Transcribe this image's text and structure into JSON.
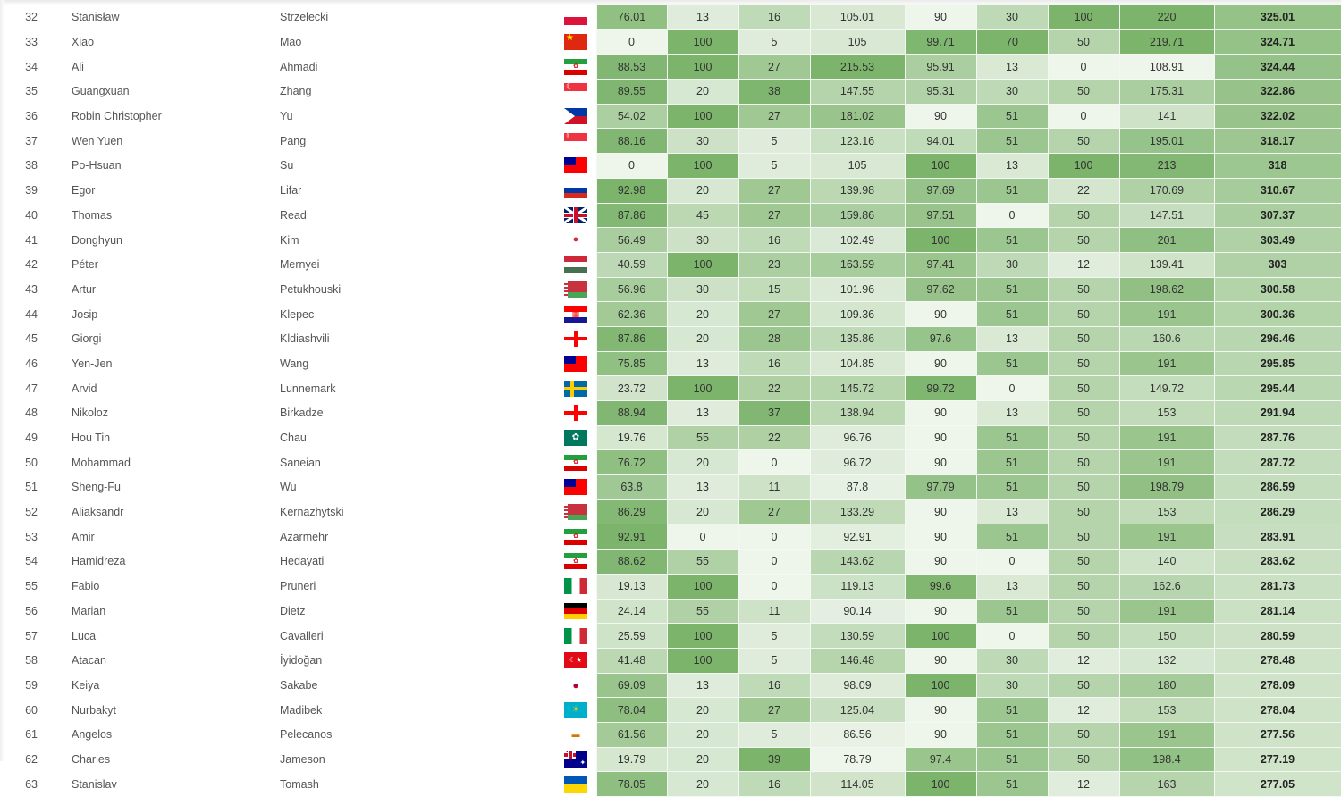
{
  "colors": {
    "heat_low": "#f4f8f2",
    "heat_high": "#7cb46c",
    "text": "#444444"
  },
  "rows": [
    {
      "rank": "32",
      "first": "Stanisław",
      "last": "Strzelecki",
      "flag": "flag-poland",
      "scores": [
        "76.01",
        "13",
        "16",
        "105.01",
        "90",
        "30",
        "100",
        "220"
      ],
      "total": "325.01"
    },
    {
      "rank": "33",
      "first": "Xiao",
      "last": "Mao",
      "flag": "flag-china",
      "scores": [
        "0",
        "100",
        "5",
        "105",
        "99.71",
        "70",
        "50",
        "219.71"
      ],
      "total": "324.71"
    },
    {
      "rank": "34",
      "first": "Ali",
      "last": "Ahmadi",
      "flag": "flag-iran",
      "scores": [
        "88.53",
        "100",
        "27",
        "215.53",
        "95.91",
        "13",
        "0",
        "108.91"
      ],
      "total": "324.44"
    },
    {
      "rank": "35",
      "first": "Guangxuan",
      "last": "Zhang",
      "flag": "flag-singapore",
      "scores": [
        "89.55",
        "20",
        "38",
        "147.55",
        "95.31",
        "30",
        "50",
        "175.31"
      ],
      "total": "322.86"
    },
    {
      "rank": "36",
      "first": "Robin Christopher",
      "last": "Yu",
      "flag": "flag-philippines",
      "scores": [
        "54.02",
        "100",
        "27",
        "181.02",
        "90",
        "51",
        "0",
        "141"
      ],
      "total": "322.02"
    },
    {
      "rank": "37",
      "first": "Wen Yuen",
      "last": "Pang",
      "flag": "flag-singapore",
      "scores": [
        "88.16",
        "30",
        "5",
        "123.16",
        "94.01",
        "51",
        "50",
        "195.01"
      ],
      "total": "318.17"
    },
    {
      "rank": "38",
      "first": "Po-Hsuan",
      "last": "Su",
      "flag": "flag-taiwan",
      "scores": [
        "0",
        "100",
        "5",
        "105",
        "100",
        "13",
        "100",
        "213"
      ],
      "total": "318"
    },
    {
      "rank": "39",
      "first": "Egor",
      "last": "Lifar",
      "flag": "flag-russia",
      "scores": [
        "92.98",
        "20",
        "27",
        "139.98",
        "97.69",
        "51",
        "22",
        "170.69"
      ],
      "total": "310.67"
    },
    {
      "rank": "40",
      "first": "Thomas",
      "last": "Read",
      "flag": "flag-united-kingdom",
      "scores": [
        "87.86",
        "45",
        "27",
        "159.86",
        "97.51",
        "0",
        "50",
        "147.51"
      ],
      "total": "307.37"
    },
    {
      "rank": "41",
      "first": "Donghyun",
      "last": "Kim",
      "flag": "flag-south-korea",
      "scores": [
        "56.49",
        "30",
        "16",
        "102.49",
        "100",
        "51",
        "50",
        "201"
      ],
      "total": "303.49"
    },
    {
      "rank": "42",
      "first": "Péter",
      "last": "Mernyei",
      "flag": "flag-hungary",
      "scores": [
        "40.59",
        "100",
        "23",
        "163.59",
        "97.41",
        "30",
        "12",
        "139.41"
      ],
      "total": "303"
    },
    {
      "rank": "43",
      "first": "Artur",
      "last": "Petukhouski",
      "flag": "flag-belarus",
      "scores": [
        "56.96",
        "30",
        "15",
        "101.96",
        "97.62",
        "51",
        "50",
        "198.62"
      ],
      "total": "300.58"
    },
    {
      "rank": "44",
      "first": "Josip",
      "last": "Klepec",
      "flag": "flag-croatia",
      "scores": [
        "62.36",
        "20",
        "27",
        "109.36",
        "90",
        "51",
        "50",
        "191"
      ],
      "total": "300.36"
    },
    {
      "rank": "45",
      "first": "Giorgi",
      "last": "Kldiashvili",
      "flag": "flag-georgia",
      "scores": [
        "87.86",
        "20",
        "28",
        "135.86",
        "97.6",
        "13",
        "50",
        "160.6"
      ],
      "total": "296.46"
    },
    {
      "rank": "46",
      "first": "Yen-Jen",
      "last": "Wang",
      "flag": "flag-taiwan",
      "scores": [
        "75.85",
        "13",
        "16",
        "104.85",
        "90",
        "51",
        "50",
        "191"
      ],
      "total": "295.85"
    },
    {
      "rank": "47",
      "first": "Arvid",
      "last": "Lunnemark",
      "flag": "flag-sweden",
      "scores": [
        "23.72",
        "100",
        "22",
        "145.72",
        "99.72",
        "0",
        "50",
        "149.72"
      ],
      "total": "295.44"
    },
    {
      "rank": "48",
      "first": "Nikoloz",
      "last": "Birkadze",
      "flag": "flag-georgia",
      "scores": [
        "88.94",
        "13",
        "37",
        "138.94",
        "90",
        "13",
        "50",
        "153"
      ],
      "total": "291.94"
    },
    {
      "rank": "49",
      "first": "Hou Tin",
      "last": "Chau",
      "flag": "flag-macau",
      "scores": [
        "19.76",
        "55",
        "22",
        "96.76",
        "90",
        "51",
        "50",
        "191"
      ],
      "total": "287.76"
    },
    {
      "rank": "50",
      "first": "Mohammad",
      "last": "Saneian",
      "flag": "flag-iran",
      "scores": [
        "76.72",
        "20",
        "0",
        "96.72",
        "90",
        "51",
        "50",
        "191"
      ],
      "total": "287.72"
    },
    {
      "rank": "51",
      "first": "Sheng-Fu",
      "last": "Wu",
      "flag": "flag-taiwan",
      "scores": [
        "63.8",
        "13",
        "11",
        "87.8",
        "97.79",
        "51",
        "50",
        "198.79"
      ],
      "total": "286.59"
    },
    {
      "rank": "52",
      "first": "Aliaksandr",
      "last": "Kernazhytski",
      "flag": "flag-belarus",
      "scores": [
        "86.29",
        "20",
        "27",
        "133.29",
        "90",
        "13",
        "50",
        "153"
      ],
      "total": "286.29"
    },
    {
      "rank": "53",
      "first": "Amir",
      "last": "Azarmehr",
      "flag": "flag-iran",
      "scores": [
        "92.91",
        "0",
        "0",
        "92.91",
        "90",
        "51",
        "50",
        "191"
      ],
      "total": "283.91"
    },
    {
      "rank": "54",
      "first": "Hamidreza",
      "last": "Hedayati",
      "flag": "flag-iran",
      "scores": [
        "88.62",
        "55",
        "0",
        "143.62",
        "90",
        "0",
        "50",
        "140"
      ],
      "total": "283.62"
    },
    {
      "rank": "55",
      "first": "Fabio",
      "last": "Pruneri",
      "flag": "flag-italy",
      "scores": [
        "19.13",
        "100",
        "0",
        "119.13",
        "99.6",
        "13",
        "50",
        "162.6"
      ],
      "total": "281.73"
    },
    {
      "rank": "56",
      "first": "Marian",
      "last": "Dietz",
      "flag": "flag-germany",
      "scores": [
        "24.14",
        "55",
        "11",
        "90.14",
        "90",
        "51",
        "50",
        "191"
      ],
      "total": "281.14"
    },
    {
      "rank": "57",
      "first": "Luca",
      "last": "Cavalleri",
      "flag": "flag-italy",
      "scores": [
        "25.59",
        "100",
        "5",
        "130.59",
        "100",
        "0",
        "50",
        "150"
      ],
      "total": "280.59"
    },
    {
      "rank": "58",
      "first": "Atacan",
      "last": "İyidoğan",
      "flag": "flag-turkey",
      "scores": [
        "41.48",
        "100",
        "5",
        "146.48",
        "90",
        "30",
        "12",
        "132"
      ],
      "total": "278.48"
    },
    {
      "rank": "59",
      "first": "Keiya",
      "last": "Sakabe",
      "flag": "flag-japan",
      "scores": [
        "69.09",
        "13",
        "16",
        "98.09",
        "100",
        "30",
        "50",
        "180"
      ],
      "total": "278.09"
    },
    {
      "rank": "60",
      "first": "Nurbakyt",
      "last": "Madibek",
      "flag": "flag-kazakhstan",
      "scores": [
        "78.04",
        "20",
        "27",
        "125.04",
        "90",
        "51",
        "12",
        "153"
      ],
      "total": "278.04"
    },
    {
      "rank": "61",
      "first": "Angelos",
      "last": "Pelecanos",
      "flag": "flag-cyprus",
      "scores": [
        "61.56",
        "20",
        "5",
        "86.56",
        "90",
        "51",
        "50",
        "191"
      ],
      "total": "277.56"
    },
    {
      "rank": "62",
      "first": "Charles",
      "last": "Jameson",
      "flag": "flag-australia",
      "scores": [
        "19.79",
        "20",
        "39",
        "78.79",
        "97.4",
        "51",
        "50",
        "198.4"
      ],
      "total": "277.19"
    },
    {
      "rank": "63",
      "first": "Stanislav",
      "last": "Tomash",
      "flag": "flag-ukraine",
      "scores": [
        "78.05",
        "20",
        "16",
        "114.05",
        "100",
        "51",
        "12",
        "163"
      ],
      "total": "277.05"
    }
  ]
}
